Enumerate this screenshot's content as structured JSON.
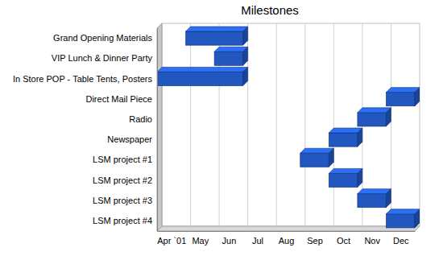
{
  "chart_data": {
    "type": "gantt",
    "title": "Milestones",
    "orientation": "horizontal",
    "categories": [
      "Grand Opening Materials",
      "VIP Lunch & Dinner Party",
      "In Store POP - Table Tents, Posters",
      "Direct Mail Piece",
      "Radio",
      "Newspaper",
      "LSM project #1",
      "LSM project #2",
      "LSM project #3",
      "LSM project #4"
    ],
    "start": [
      1,
      2,
      0,
      8,
      7,
      6,
      5,
      6,
      7,
      8
    ],
    "end": [
      3,
      3,
      3,
      9,
      8,
      7,
      6,
      7,
      8,
      9
    ],
    "color": "#2257c0",
    "xlim": [
      0,
      9
    ],
    "xticks": [
      {
        "value": 0.5,
        "label": "Apr `01"
      },
      {
        "value": 1.5,
        "label": "May"
      },
      {
        "value": 2.5,
        "label": "Jun"
      },
      {
        "value": 3.5,
        "label": "Jul"
      },
      {
        "value": 4.5,
        "label": "Aug"
      },
      {
        "value": 5.5,
        "label": "Sep"
      },
      {
        "value": 6.5,
        "label": "Oct"
      },
      {
        "value": 7.5,
        "label": "Nov"
      },
      {
        "value": 8.5,
        "label": "Dec"
      }
    ],
    "grid": true
  }
}
